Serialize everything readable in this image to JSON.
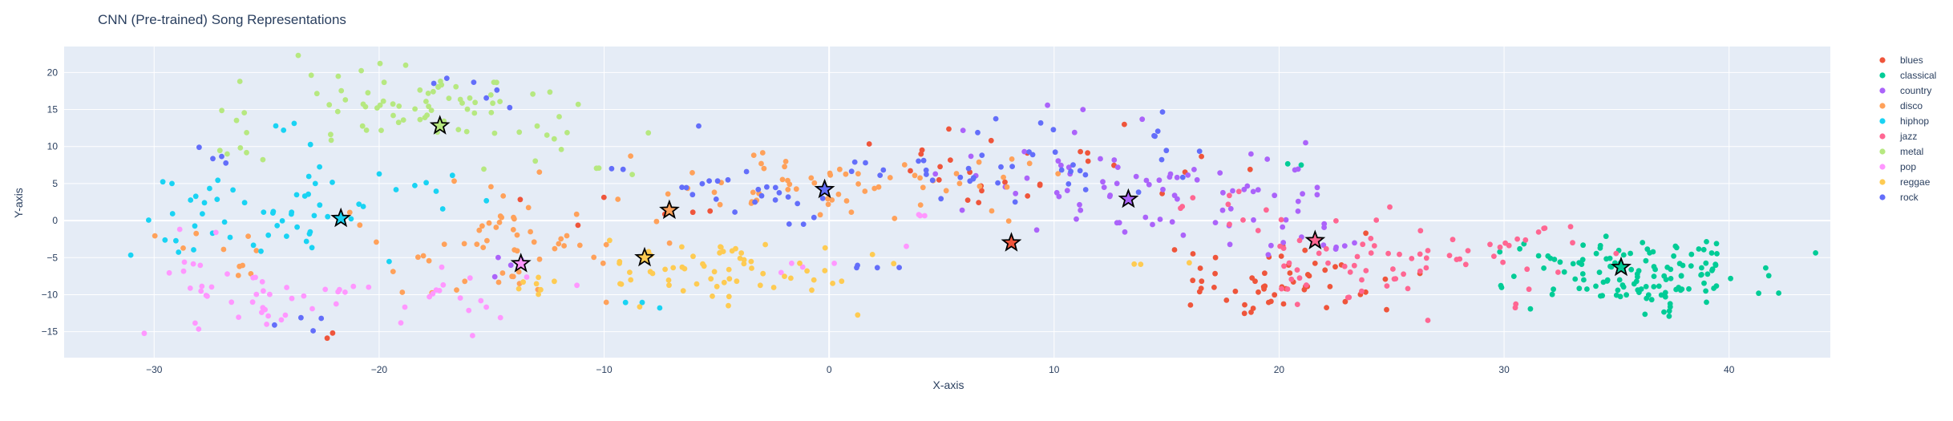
{
  "chart_data": {
    "type": "scatter",
    "title": "CNN (Pre-trained) Song Representations",
    "xlabel": "X-axis",
    "ylabel": "Y-axis",
    "xlim": [
      -34,
      44.5
    ],
    "ylim": [
      -18.5,
      23.5
    ],
    "xticks": [
      -30,
      -20,
      -10,
      0,
      10,
      20,
      30,
      40
    ],
    "yticks": [
      -15,
      -10,
      -5,
      0,
      5,
      10,
      15,
      20
    ],
    "xtick_labels": [
      "−30",
      "−20",
      "−10",
      "0",
      "10",
      "20",
      "30",
      "40"
    ],
    "ytick_labels": [
      "−15",
      "−10",
      "−5",
      "0",
      "5",
      "10",
      "15",
      "20"
    ],
    "grid": true,
    "legend_position": "right",
    "series": [
      {
        "name": "blues",
        "color": "#EF553B",
        "centroid": [
          8.1,
          -3.0
        ],
        "clusters": [
          {
            "cx": 19.5,
            "cy": -8.5,
            "sx": 2.8,
            "sy": 2.8,
            "n": 55
          },
          {
            "cx": 6.5,
            "cy": 6.5,
            "sx": 3.0,
            "sy": 3.0,
            "n": 20
          },
          {
            "cx": 14.0,
            "cy": 9.0,
            "sx": 2.0,
            "sy": 2.5,
            "n": 8
          },
          {
            "cx": -8.5,
            "cy": 1.5,
            "sx": 2.0,
            "sy": 1.5,
            "n": 6
          },
          {
            "cx": -22.0,
            "cy": -15.5,
            "sx": 0.3,
            "sy": 0.3,
            "n": 2
          }
        ]
      },
      {
        "name": "classical",
        "color": "#00CC96",
        "centroid": [
          35.2,
          -6.3
        ],
        "clusters": [
          {
            "cx": 36.2,
            "cy": -7.2,
            "sx": 2.6,
            "sy": 2.2,
            "n": 120
          },
          {
            "cx": 31.5,
            "cy": -5.5,
            "sx": 1.2,
            "sy": 2.0,
            "n": 10
          },
          {
            "cx": 20.5,
            "cy": 7.5,
            "sx": 0.3,
            "sy": 0.3,
            "n": 2
          }
        ]
      },
      {
        "name": "country",
        "color": "#AB63FA",
        "centroid": [
          13.3,
          2.9
        ],
        "clusters": [
          {
            "cx": 13.5,
            "cy": 4.5,
            "sx": 3.5,
            "sy": 4.0,
            "n": 70
          },
          {
            "cx": 20.5,
            "cy": -1.0,
            "sx": 2.0,
            "sy": 3.0,
            "n": 20
          },
          {
            "cx": -14.0,
            "cy": -6.0,
            "sx": 0.8,
            "sy": 0.8,
            "n": 4
          }
        ]
      },
      {
        "name": "disco",
        "color": "#FFA15A",
        "centroid": [
          -7.1,
          1.4
        ],
        "clusters": [
          {
            "cx": -1.0,
            "cy": 4.5,
            "sx": 3.0,
            "sy": 2.5,
            "n": 45
          },
          {
            "cx": -14.0,
            "cy": -3.0,
            "sx": 4.0,
            "sy": 4.0,
            "n": 60
          },
          {
            "cx": -27.0,
            "cy": -4.0,
            "sx": 1.5,
            "sy": 3.0,
            "n": 10
          },
          {
            "cx": 6.0,
            "cy": 6.0,
            "sx": 3.0,
            "sy": 2.5,
            "n": 15
          }
        ]
      },
      {
        "name": "hiphop",
        "color": "#19D3F3",
        "centroid": [
          -21.7,
          0.3
        ],
        "clusters": [
          {
            "cx": -25.5,
            "cy": 0.5,
            "sx": 2.5,
            "sy": 3.0,
            "n": 50
          },
          {
            "cx": -18.0,
            "cy": 4.0,
            "sx": 1.5,
            "sy": 1.5,
            "n": 10
          },
          {
            "cx": -23.5,
            "cy": 12.0,
            "sx": 1.0,
            "sy": 1.0,
            "n": 4
          },
          {
            "cx": -8.0,
            "cy": -11.0,
            "sx": 1.0,
            "sy": 0.5,
            "n": 3
          }
        ]
      },
      {
        "name": "jazz",
        "color": "#FF6692",
        "centroid": [
          21.6,
          -2.7
        ],
        "clusters": [
          {
            "cx": 24.5,
            "cy": -5.0,
            "sx": 4.5,
            "sy": 3.5,
            "n": 75
          },
          {
            "cx": 17.0,
            "cy": 2.0,
            "sx": 2.0,
            "sy": 2.0,
            "n": 8
          }
        ]
      },
      {
        "name": "metal",
        "color": "#B6E880",
        "centroid": [
          -17.3,
          12.8
        ],
        "clusters": [
          {
            "cx": -18.0,
            "cy": 15.0,
            "sx": 4.0,
            "sy": 2.8,
            "n": 80
          },
          {
            "cx": -26.0,
            "cy": 10.0,
            "sx": 0.5,
            "sy": 0.8,
            "n": 4
          },
          {
            "cx": -10.0,
            "cy": 7.0,
            "sx": 1.0,
            "sy": 0.6,
            "n": 3
          }
        ]
      },
      {
        "name": "pop",
        "color": "#FF97FF",
        "centroid": [
          -13.7,
          -5.8
        ],
        "clusters": [
          {
            "cx": -24.0,
            "cy": -10.5,
            "sx": 3.0,
            "sy": 2.0,
            "n": 40
          },
          {
            "cx": -15.5,
            "cy": -10.5,
            "sx": 2.0,
            "sy": 2.5,
            "n": 15
          },
          {
            "cx": -28.5,
            "cy": -5.0,
            "sx": 0.8,
            "sy": 1.5,
            "n": 6
          },
          {
            "cx": -1.5,
            "cy": -5.5,
            "sx": 2.0,
            "sy": 1.0,
            "n": 5
          },
          {
            "cx": 4.0,
            "cy": 0.5,
            "sx": 0.3,
            "sy": 0.2,
            "n": 3
          }
        ]
      },
      {
        "name": "reggae",
        "color": "#FECB52",
        "centroid": [
          -8.2,
          -5.0
        ],
        "clusters": [
          {
            "cx": -5.0,
            "cy": -7.0,
            "sx": 2.7,
            "sy": 2.5,
            "n": 60
          },
          {
            "cx": -12.5,
            "cy": -9.0,
            "sx": 2.0,
            "sy": 1.5,
            "n": 10
          },
          {
            "cx": 14.5,
            "cy": -6.0,
            "sx": 1.0,
            "sy": 0.5,
            "n": 3
          }
        ]
      },
      {
        "name": "rock",
        "color": "#636EFA",
        "centroid": [
          -0.2,
          4.2
        ],
        "clusters": [
          {
            "cx": 8.0,
            "cy": 7.5,
            "sx": 4.5,
            "sy": 3.5,
            "n": 45
          },
          {
            "cx": -5.0,
            "cy": 5.0,
            "sx": 3.5,
            "sy": 2.5,
            "n": 25
          },
          {
            "cx": -15.0,
            "cy": 17.0,
            "sx": 1.5,
            "sy": 1.5,
            "n": 6
          },
          {
            "cx": -27.0,
            "cy": 8.5,
            "sx": 1.0,
            "sy": 0.5,
            "n": 4
          },
          {
            "cx": -23.0,
            "cy": -13.5,
            "sx": 1.0,
            "sy": 1.0,
            "n": 4
          },
          {
            "cx": 2.0,
            "cy": -6.0,
            "sx": 1.2,
            "sy": 0.5,
            "n": 4
          }
        ]
      }
    ]
  }
}
